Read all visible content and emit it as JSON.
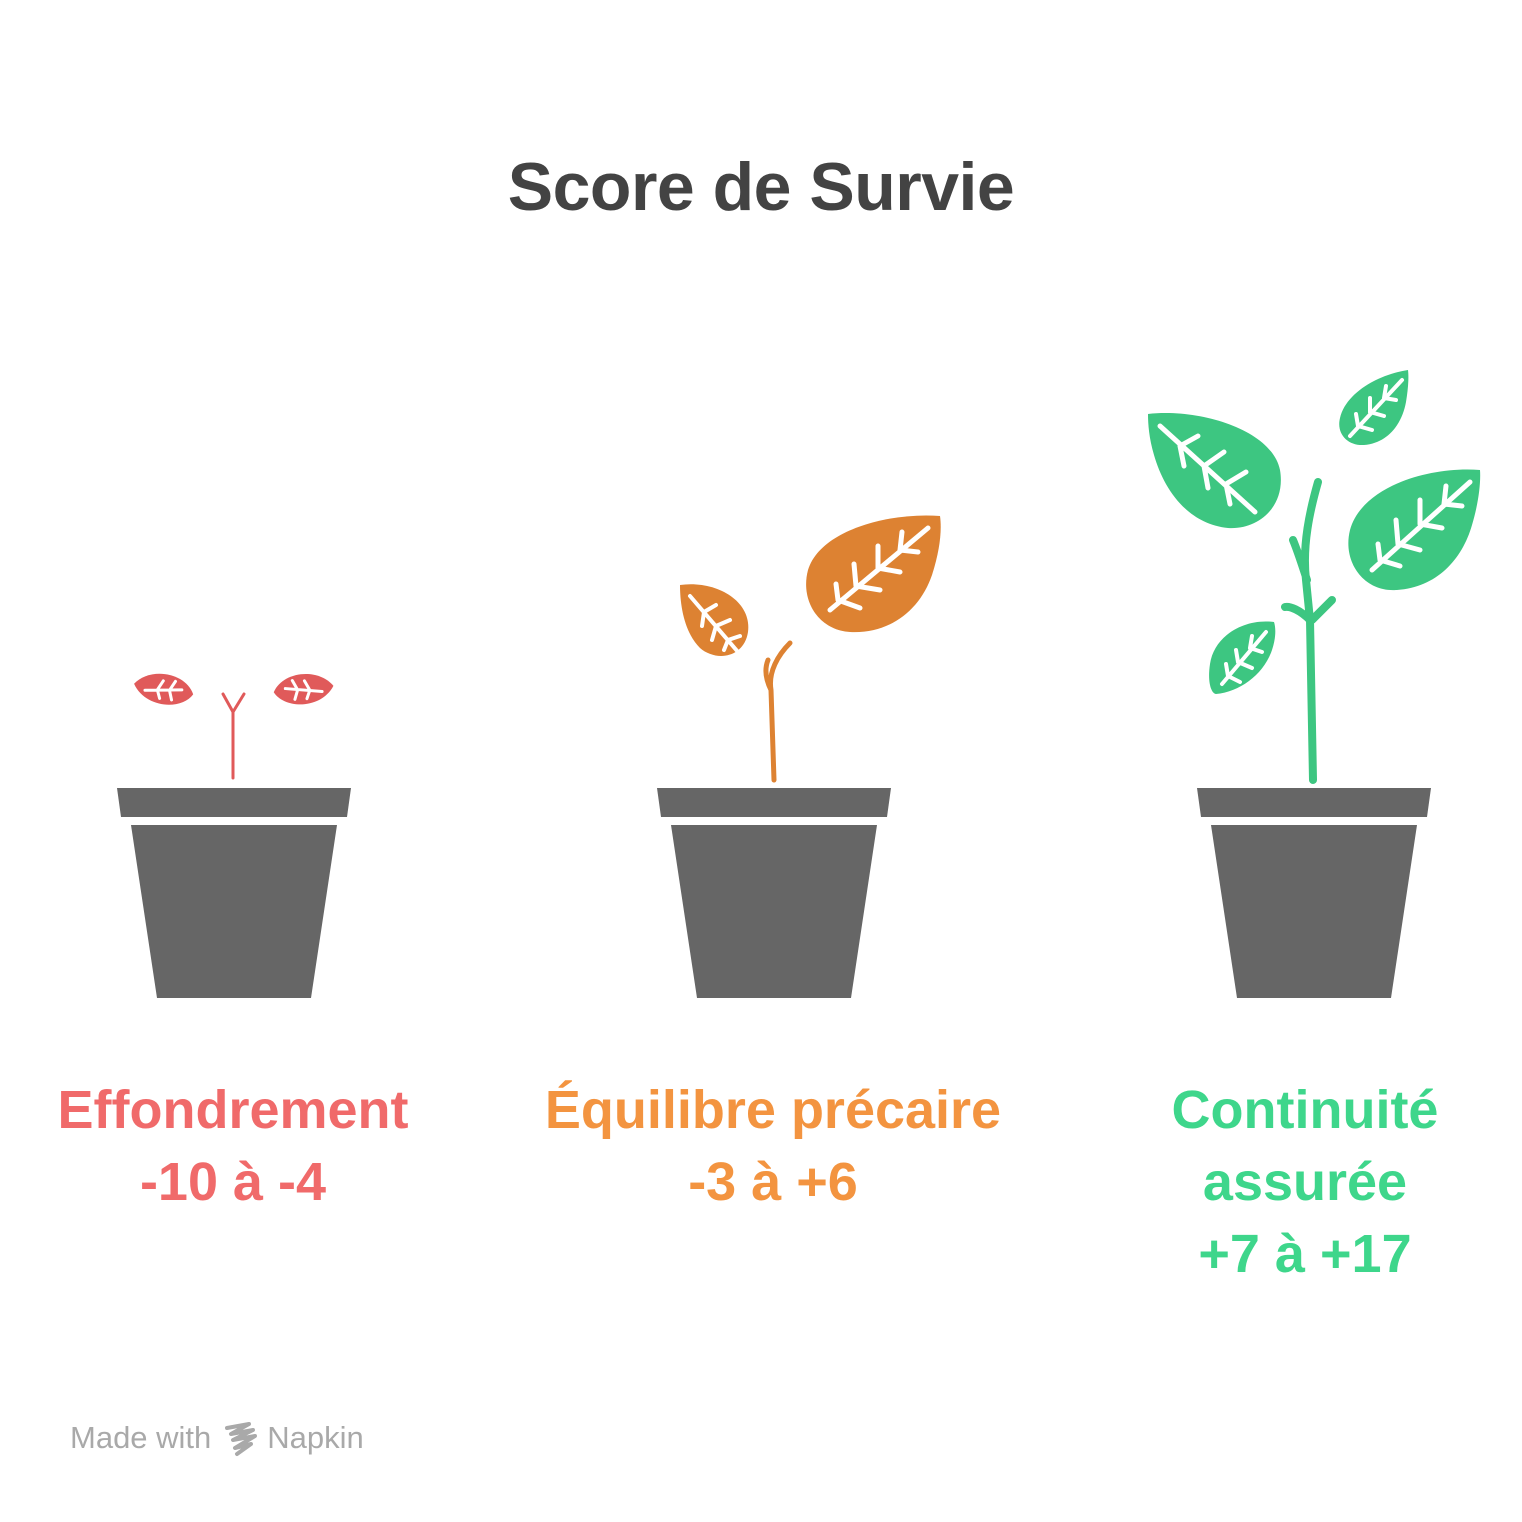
{
  "title": "Score de Survie",
  "stages": [
    {
      "name": "Effondrement",
      "range": "-10 à -4",
      "color": "#f06a6a"
    },
    {
      "name": "Équilibre précaire",
      "range": "-3 à +6",
      "color": "#f39440"
    },
    {
      "name_line1": "Continuité",
      "name_line2": "assurée",
      "range": "+7 à +17",
      "color": "#3ed68b"
    }
  ],
  "footer": {
    "made_with": "Made with",
    "brand": "Napkin"
  },
  "colors": {
    "pot": "#666666",
    "title": "#434343",
    "leaf_red": "#e05a5a",
    "leaf_orange": "#dd8232",
    "leaf_green": "#3dc681"
  }
}
